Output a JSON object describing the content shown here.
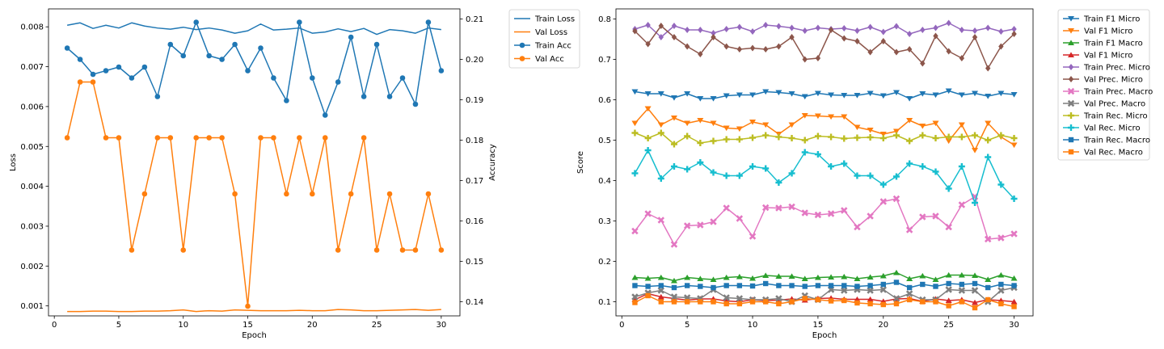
{
  "chart_data": [
    {
      "type": "line",
      "xlabel": "Epoch",
      "ylabel": "Loss",
      "y2label": "Accuracy",
      "xlim": [
        -0.45,
        31.45
      ],
      "ylim": [
        0.00075,
        0.00845
      ],
      "y2lim": [
        0.1365,
        0.2125
      ],
      "xticks": [
        0,
        5,
        10,
        15,
        20,
        25,
        30
      ],
      "yticks": [
        0.001,
        0.002,
        0.003,
        0.004,
        0.005,
        0.006,
        0.007,
        0.008
      ],
      "y2ticks": [
        0.14,
        0.15,
        0.16,
        0.17,
        0.18,
        0.19,
        0.2,
        0.21
      ],
      "legend_position": "outside-right",
      "x": [
        1,
        2,
        3,
        4,
        5,
        6,
        7,
        8,
        9,
        10,
        11,
        12,
        13,
        14,
        15,
        16,
        17,
        18,
        19,
        20,
        21,
        22,
        23,
        24,
        25,
        26,
        27,
        28,
        29,
        30
      ],
      "series": [
        {
          "name": "Train Loss",
          "color": "#1f77b4",
          "axis": "left",
          "marker": "none",
          "values": [
            0.00804,
            0.0081,
            0.00796,
            0.00804,
            0.00797,
            0.0081,
            0.00802,
            0.00797,
            0.00794,
            0.00799,
            0.00793,
            0.00797,
            0.00792,
            0.00784,
            0.0079,
            0.00807,
            0.00792,
            0.00794,
            0.00797,
            0.00784,
            0.00787,
            0.00795,
            0.00788,
            0.00796,
            0.00781,
            0.00793,
            0.0079,
            0.00784,
            0.00797,
            0.00793
          ]
        },
        {
          "name": "Val Loss",
          "color": "#ff7f0e",
          "axis": "left",
          "marker": "none",
          "values": [
            0.00086,
            0.00086,
            0.00087,
            0.00087,
            0.00086,
            0.00086,
            0.00087,
            0.00087,
            0.00088,
            0.0009,
            0.00086,
            0.00088,
            0.00087,
            0.0009,
            0.00089,
            0.00088,
            0.00088,
            0.00088,
            0.00089,
            0.00088,
            0.00088,
            0.00091,
            0.0009,
            0.00088,
            0.00088,
            0.00089,
            0.0009,
            0.00091,
            0.00089,
            0.00091
          ]
        },
        {
          "name": "Train Acc",
          "color": "#1f77b4",
          "axis": "right",
          "marker": "circle",
          "values": [
            0.2028,
            0.2,
            0.1963,
            0.1972,
            0.1981,
            0.1954,
            0.1981,
            0.1908,
            0.2037,
            0.2009,
            0.2092,
            0.2009,
            0.2,
            0.2037,
            0.1972,
            0.2028,
            0.1954,
            0.1898,
            0.2092,
            0.1954,
            0.1862,
            0.1944,
            0.2055,
            0.1908,
            0.2037,
            0.1908,
            0.1954,
            0.1889,
            0.2092,
            0.1972
          ]
        },
        {
          "name": "Val Acc",
          "color": "#ff7f0e",
          "axis": "right",
          "marker": "circle",
          "values": [
            0.1806,
            0.1944,
            0.1944,
            0.1806,
            0.1806,
            0.1528,
            0.1667,
            0.1806,
            0.1806,
            0.1528,
            0.1806,
            0.1806,
            0.1806,
            0.1667,
            0.1389,
            0.1806,
            0.1806,
            0.1667,
            0.1806,
            0.1667,
            0.1806,
            0.1528,
            0.1667,
            0.1806,
            0.1528,
            0.1667,
            0.1528,
            0.1528,
            0.1667,
            0.1528
          ]
        }
      ]
    },
    {
      "type": "line",
      "xlabel": "Epoch",
      "ylabel": "Score",
      "xlim": [
        -0.45,
        31.45
      ],
      "ylim": [
        0.065,
        0.825
      ],
      "xticks": [
        0,
        5,
        10,
        15,
        20,
        25,
        30
      ],
      "yticks": [
        0.1,
        0.2,
        0.3,
        0.4,
        0.5,
        0.6,
        0.7,
        0.8
      ],
      "legend_position": "outside-right",
      "x": [
        1,
        2,
        3,
        4,
        5,
        6,
        7,
        8,
        9,
        10,
        11,
        12,
        13,
        14,
        15,
        16,
        17,
        18,
        19,
        20,
        21,
        22,
        23,
        24,
        25,
        26,
        27,
        28,
        29,
        30
      ],
      "series": [
        {
          "name": "Train F1 Micro",
          "color": "#1f77b4",
          "marker": "triangle-down",
          "values": [
            0.62,
            0.615,
            0.615,
            0.605,
            0.615,
            0.603,
            0.603,
            0.61,
            0.612,
            0.612,
            0.62,
            0.618,
            0.615,
            0.608,
            0.616,
            0.612,
            0.611,
            0.611,
            0.616,
            0.61,
            0.618,
            0.603,
            0.615,
            0.612,
            0.622,
            0.612,
            0.616,
            0.609,
            0.616,
            0.613
          ]
        },
        {
          "name": "Val F1 Micro",
          "color": "#ff7f0e",
          "marker": "triangle-down",
          "values": [
            0.542,
            0.578,
            0.538,
            0.555,
            0.542,
            0.549,
            0.542,
            0.53,
            0.528,
            0.545,
            0.538,
            0.515,
            0.538,
            0.561,
            0.56,
            0.558,
            0.558,
            0.532,
            0.525,
            0.515,
            0.522,
            0.549,
            0.535,
            0.542,
            0.498,
            0.538,
            0.475,
            0.542,
            0.508,
            0.488
          ]
        },
        {
          "name": "Train F1 Macro",
          "color": "#2ca02c",
          "marker": "triangle-up",
          "values": [
            0.16,
            0.158,
            0.16,
            0.152,
            0.16,
            0.157,
            0.155,
            0.16,
            0.162,
            0.158,
            0.165,
            0.163,
            0.163,
            0.157,
            0.16,
            0.161,
            0.162,
            0.157,
            0.161,
            0.164,
            0.172,
            0.157,
            0.164,
            0.155,
            0.166,
            0.166,
            0.165,
            0.155,
            0.166,
            0.158
          ]
        },
        {
          "name": "Val F1 Micro",
          "color": "#d62728",
          "marker": "triangle-up",
          "values": [
            0.105,
            0.12,
            0.112,
            0.108,
            0.104,
            0.107,
            0.107,
            0.102,
            0.1,
            0.105,
            0.103,
            0.104,
            0.107,
            0.104,
            0.108,
            0.109,
            0.106,
            0.106,
            0.106,
            0.101,
            0.107,
            0.108,
            0.101,
            0.107,
            0.103,
            0.105,
            0.098,
            0.105,
            0.103,
            0.1
          ]
        },
        {
          "name": "Train Prec. Micro",
          "color": "#9467bd",
          "marker": "diamond",
          "values": [
            0.775,
            0.785,
            0.755,
            0.783,
            0.773,
            0.773,
            0.765,
            0.775,
            0.78,
            0.769,
            0.785,
            0.782,
            0.778,
            0.771,
            0.778,
            0.775,
            0.777,
            0.771,
            0.78,
            0.768,
            0.782,
            0.763,
            0.773,
            0.778,
            0.79,
            0.773,
            0.771,
            0.778,
            0.769,
            0.775
          ]
        },
        {
          "name": "Val Prec. Micro",
          "color": "#8c564b",
          "marker": "diamond",
          "values": [
            0.77,
            0.738,
            0.783,
            0.755,
            0.732,
            0.713,
            0.755,
            0.732,
            0.725,
            0.728,
            0.725,
            0.732,
            0.755,
            0.7,
            0.703,
            0.773,
            0.752,
            0.745,
            0.718,
            0.745,
            0.718,
            0.725,
            0.69,
            0.758,
            0.72,
            0.703,
            0.755,
            0.678,
            0.732,
            0.763
          ]
        },
        {
          "name": "Train Prec. Macro",
          "color": "#e377c2",
          "marker": "x",
          "values": [
            0.275,
            0.318,
            0.302,
            0.242,
            0.288,
            0.29,
            0.298,
            0.332,
            0.306,
            0.262,
            0.333,
            0.332,
            0.335,
            0.32,
            0.315,
            0.318,
            0.326,
            0.285,
            0.312,
            0.348,
            0.355,
            0.278,
            0.31,
            0.312,
            0.285,
            0.34,
            0.36,
            0.255,
            0.258,
            0.268
          ]
        },
        {
          "name": "Val Prec. Macro",
          "color": "#7f7f7f",
          "marker": "x",
          "values": [
            0.112,
            0.122,
            0.128,
            0.112,
            0.11,
            0.108,
            0.13,
            0.11,
            0.108,
            0.105,
            0.105,
            0.108,
            0.1,
            0.115,
            0.105,
            0.13,
            0.128,
            0.13,
            0.128,
            0.13,
            0.108,
            0.12,
            0.105,
            0.105,
            0.13,
            0.128,
            0.128,
            0.1,
            0.128,
            0.135
          ]
        },
        {
          "name": "Train Rec. Micro",
          "color": "#bcbd22",
          "marker": "plus",
          "values": [
            0.518,
            0.505,
            0.518,
            0.49,
            0.51,
            0.493,
            0.498,
            0.502,
            0.502,
            0.506,
            0.512,
            0.508,
            0.505,
            0.5,
            0.51,
            0.508,
            0.504,
            0.506,
            0.507,
            0.505,
            0.512,
            0.498,
            0.512,
            0.505,
            0.508,
            0.508,
            0.512,
            0.5,
            0.512,
            0.505
          ]
        },
        {
          "name": "Val Rec. Micro",
          "color": "#17becf",
          "marker": "plus",
          "values": [
            0.418,
            0.475,
            0.405,
            0.435,
            0.428,
            0.445,
            0.42,
            0.412,
            0.412,
            0.435,
            0.43,
            0.395,
            0.418,
            0.47,
            0.465,
            0.435,
            0.442,
            0.412,
            0.412,
            0.39,
            0.41,
            0.442,
            0.435,
            0.422,
            0.38,
            0.435,
            0.345,
            0.458,
            0.39,
            0.355
          ]
        },
        {
          "name": "Train Rec. Macro",
          "color": "#1f77b4",
          "marker": "square",
          "values": [
            0.14,
            0.138,
            0.14,
            0.135,
            0.14,
            0.138,
            0.135,
            0.14,
            0.14,
            0.139,
            0.145,
            0.14,
            0.14,
            0.138,
            0.14,
            0.14,
            0.14,
            0.138,
            0.14,
            0.143,
            0.148,
            0.135,
            0.143,
            0.138,
            0.145,
            0.143,
            0.145,
            0.135,
            0.143,
            0.14
          ]
        },
        {
          "name": "Val Rec. Macro",
          "color": "#ff7f0e",
          "marker": "square",
          "values": [
            0.098,
            0.115,
            0.1,
            0.1,
            0.1,
            0.1,
            0.1,
            0.095,
            0.095,
            0.1,
            0.1,
            0.095,
            0.1,
            0.108,
            0.105,
            0.102,
            0.103,
            0.097,
            0.095,
            0.093,
            0.095,
            0.105,
            0.1,
            0.1,
            0.09,
            0.1,
            0.085,
            0.105,
            0.095,
            0.088
          ]
        }
      ]
    }
  ]
}
